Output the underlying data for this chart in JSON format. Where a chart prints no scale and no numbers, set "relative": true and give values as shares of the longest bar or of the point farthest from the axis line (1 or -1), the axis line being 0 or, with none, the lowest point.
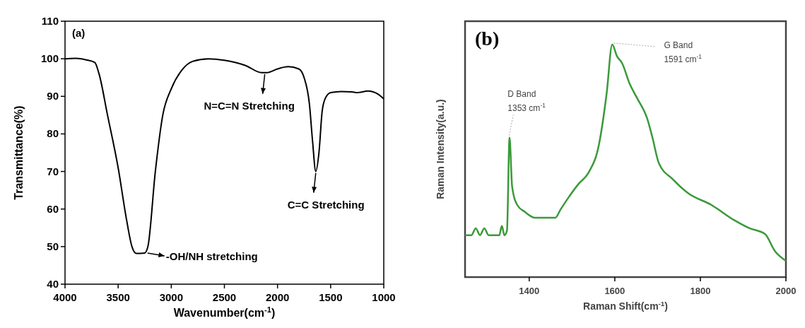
{
  "chart_data": [
    {
      "type": "line",
      "xlabel": "Wavenumber(cm$^{-1}$)",
      "ylabel": "Transmittance(%)",
      "xlim": [
        4000,
        1000
      ],
      "xticks": [
        4000,
        3500,
        3000,
        2500,
        2000,
        1500,
        1000
      ],
      "ylim": [
        40,
        110
      ],
      "yticks": [
        40,
        50,
        60,
        70,
        80,
        90,
        100,
        110
      ],
      "series": [
        {
          "color": "#000000",
          "x": [
            4000,
            3900,
            3800,
            3720,
            3680,
            3600,
            3500,
            3420,
            3370,
            3330,
            3250,
            3220,
            3150,
            3080,
            3000,
            2900,
            2800,
            2650,
            2500,
            2300,
            2150,
            2100,
            2000,
            1900,
            1800,
            1750,
            1700,
            1670,
            1640,
            1610,
            1580,
            1550,
            1500,
            1400,
            1300,
            1250,
            1150,
            1050,
            1000
          ],
          "values": [
            100,
            100.1,
            99.7,
            99,
            96,
            85,
            71,
            57,
            50,
            48.2,
            48.3,
            50,
            70,
            85,
            92,
            97,
            99.3,
            100,
            99.6,
            98.2,
            96.3,
            96.3,
            97.3,
            97.9,
            97.3,
            95,
            88,
            78,
            70,
            75,
            86,
            89.5,
            91,
            91.3,
            91.2,
            91,
            91.4,
            90.5,
            89.3
          ]
        }
      ],
      "annotations": [
        "(a)",
        {
          "text": "-OH/NH stretching",
          "x": 3250,
          "y": 48.3
        },
        {
          "text": "N=C=N Stretching",
          "x": 2120,
          "y": 96.3
        },
        {
          "text": "C=C Stretching",
          "x": 1640,
          "y": 70
        }
      ]
    },
    {
      "type": "line",
      "relative": true,
      "xlabel": "Raman Shift(cm$^{-1}$)",
      "ylabel": "Raman Intensity(a.u.)",
      "xlim": [
        1250,
        2000
      ],
      "xticks": [
        1400,
        1600,
        1800,
        2000
      ],
      "series": [
        {
          "color": "#3a9a3a",
          "x": [
            1250,
            1265,
            1275,
            1285,
            1295,
            1305,
            1330,
            1336,
            1342,
            1348,
            1354,
            1360,
            1372,
            1390,
            1414,
            1461,
            1473,
            1491,
            1515,
            1539,
            1563,
            1581,
            1594,
            1605,
            1617,
            1635,
            1652,
            1676,
            1688,
            1703,
            1736,
            1772,
            1826,
            1879,
            1915,
            1951,
            1975,
            2000
          ],
          "values": [
            0.18,
            0.18,
            0.21,
            0.18,
            0.21,
            0.18,
            0.18,
            0.22,
            0.18,
            0.2,
            0.6,
            0.39,
            0.31,
            0.28,
            0.255,
            0.255,
            0.29,
            0.34,
            0.4,
            0.45,
            0.57,
            0.79,
            1.0,
            0.95,
            0.92,
            0.83,
            0.77,
            0.68,
            0.6,
            0.49,
            0.42,
            0.36,
            0.31,
            0.245,
            0.21,
            0.185,
            0.11,
            0.07
          ]
        }
      ],
      "annotations": [
        "(b)",
        {
          "text": "D Band\n1353 cm$^{-1}$",
          "x": 1353,
          "y": 0.6
        },
        {
          "text": "G Band\n1591 cm$^{-1}$",
          "x": 1591,
          "y": 1.0
        }
      ]
    }
  ]
}
